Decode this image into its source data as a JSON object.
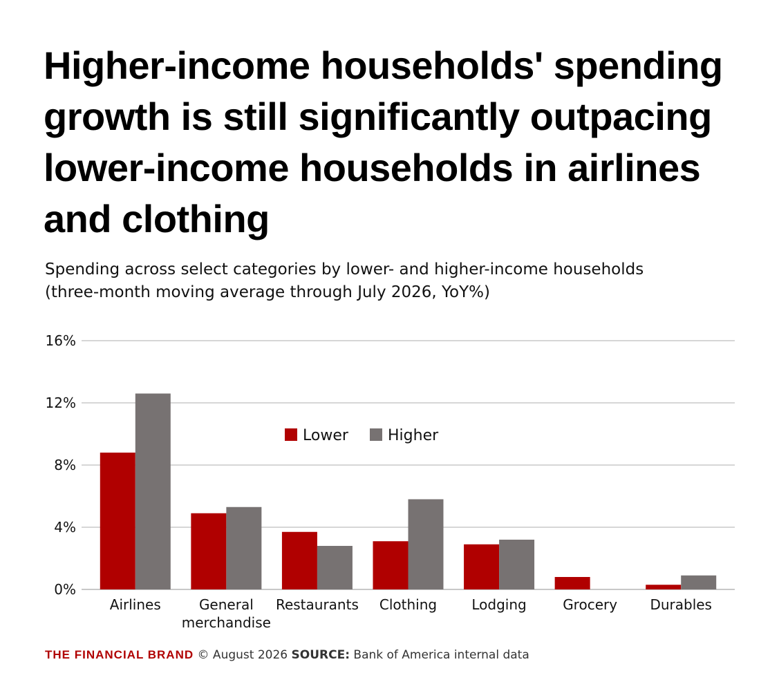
{
  "title": "Higher-income households' spending growth is still significantly outpacing lower-income households in airlines and clothing",
  "subtitle_line1": "Spending across select categories by lower- and higher-income households",
  "subtitle_line2": "(three-month moving average through July 2026, YoY%)",
  "footer": {
    "brand": "THE FINANCIAL BRAND",
    "copyright": "© August 2026",
    "source_key": "SOURCE:",
    "source_text": "Bank of America internal data"
  },
  "colors": {
    "lower": "#b00000",
    "higher": "#777272",
    "grid": "#c8c8c8",
    "brand": "#b00000"
  },
  "chart_data": {
    "type": "bar",
    "categories": [
      [
        "Airlines"
      ],
      [
        "General",
        "merchandise"
      ],
      [
        "Restaurants"
      ],
      [
        "Clothing"
      ],
      [
        "Lodging"
      ],
      [
        "Grocery"
      ],
      [
        "Durables"
      ]
    ],
    "series": [
      {
        "name": "Lower",
        "values": [
          8.8,
          4.9,
          3.7,
          3.1,
          2.9,
          0.8,
          0.3
        ]
      },
      {
        "name": "Higher",
        "values": [
          12.6,
          5.3,
          2.8,
          5.8,
          3.2,
          0.0,
          0.9
        ]
      }
    ],
    "ylim": [
      0,
      16
    ],
    "yticks": [
      0,
      4,
      8,
      12,
      16
    ],
    "ytick_labels": [
      "0%",
      "4%",
      "8%",
      "12%",
      "16%"
    ],
    "grid": true,
    "legend_position": "top-center"
  }
}
